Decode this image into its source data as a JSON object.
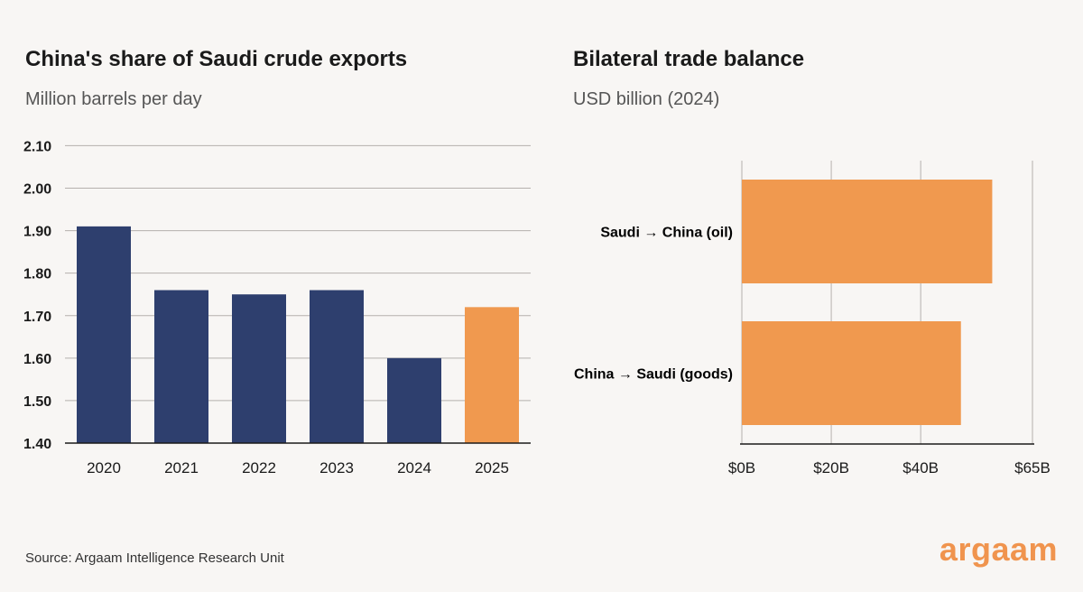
{
  "brand": {
    "logo_text": "argaam",
    "logo_color": "#f0944e"
  },
  "source": "Source: Argaam Intelligence Research Unit",
  "chart_data": [
    {
      "type": "bar",
      "orientation": "vertical",
      "title": "China's share of Saudi crude exports",
      "subtitle": "Million barrels per day",
      "categories": [
        "2020",
        "2021",
        "2022",
        "2023",
        "2024",
        "2025"
      ],
      "values": [
        1.91,
        1.76,
        1.75,
        1.76,
        1.6,
        1.72
      ],
      "colors": [
        "#2e3f6e",
        "#2e3f6e",
        "#2e3f6e",
        "#2e3f6e",
        "#2e3f6e",
        "#f0994f"
      ],
      "ylim": [
        1.4,
        2.12
      ],
      "yticks": [
        "2.10",
        "2.00",
        "1.90",
        "1.80",
        "1.70",
        "1.60",
        "1.50",
        "1.40"
      ],
      "grid": true
    },
    {
      "type": "bar",
      "orientation": "horizontal",
      "title": "Bilateral trade balance",
      "subtitle": "USD billion (2024)",
      "categories": [
        "Saudi → China (oil)",
        "China → Saudi (goods)"
      ],
      "values": [
        56,
        49
      ],
      "color": "#f0994f",
      "xlim": [
        0,
        65
      ],
      "xticks": [
        {
          "value": 0,
          "label": "$0B"
        },
        {
          "value": 20,
          "label": "$20B"
        },
        {
          "value": 40,
          "label": "$40B"
        },
        {
          "value": 65,
          "label": "$65B"
        }
      ],
      "grid": true
    }
  ]
}
